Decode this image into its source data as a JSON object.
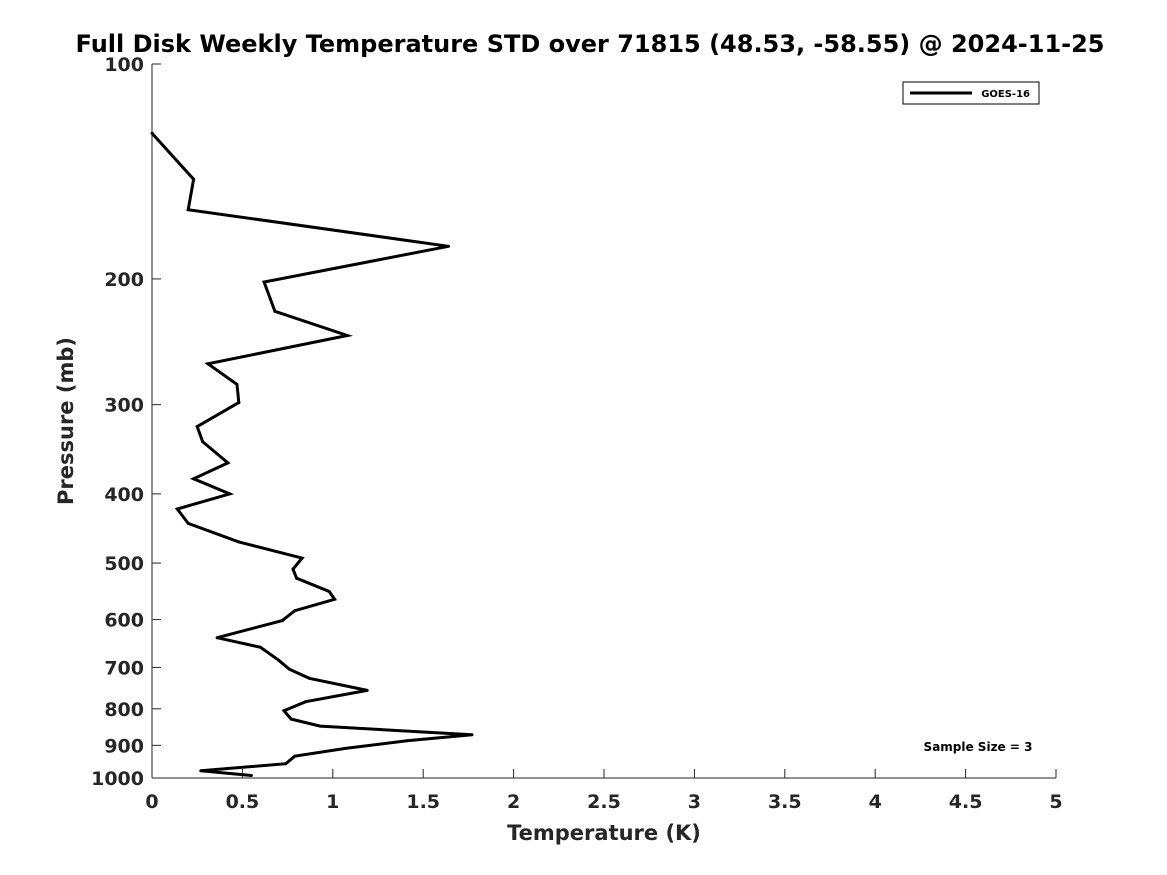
{
  "chart_data": {
    "type": "line",
    "title": "Full Disk Weekly Temperature STD over 71815 (48.53, -58.55) @ 2024-11-25",
    "xlabel": "Temperature (K)",
    "ylabel": "Pressure (mb)",
    "xlim": [
      0,
      5
    ],
    "ylim": [
      100,
      1000
    ],
    "y_scale": "log",
    "y_reversed": true,
    "x_ticks": [
      "0",
      "0.5",
      "1",
      "1.5",
      "2",
      "2.5",
      "3",
      "3.5",
      "4",
      "4.5",
      "5"
    ],
    "y_ticks": [
      "100",
      "200",
      "300",
      "400",
      "500",
      "600",
      "700",
      "800",
      "900",
      "1000"
    ],
    "grid": false,
    "legend_position": "top-right",
    "annotation": "Sample Size = 3",
    "series": [
      {
        "name": "GOES-16",
        "color": "#000000",
        "points": [
          [
            0.0,
            125
          ],
          [
            0.23,
            145
          ],
          [
            0.2,
            160
          ],
          [
            1.64,
            180
          ],
          [
            0.62,
            202
          ],
          [
            0.68,
            222
          ],
          [
            1.08,
            240
          ],
          [
            0.31,
            263
          ],
          [
            0.47,
            281
          ],
          [
            0.48,
            298
          ],
          [
            0.25,
            322
          ],
          [
            0.28,
            338
          ],
          [
            0.42,
            362
          ],
          [
            0.23,
            381
          ],
          [
            0.43,
            400
          ],
          [
            0.14,
            420
          ],
          [
            0.2,
            440
          ],
          [
            0.48,
            467
          ],
          [
            0.83,
            492
          ],
          [
            0.78,
            510
          ],
          [
            0.8,
            525
          ],
          [
            0.98,
            548
          ],
          [
            1.01,
            562
          ],
          [
            0.79,
            583
          ],
          [
            0.72,
            602
          ],
          [
            0.36,
            636
          ],
          [
            0.6,
            656
          ],
          [
            0.7,
            684
          ],
          [
            0.76,
            704
          ],
          [
            0.87,
            725
          ],
          [
            1.19,
            754
          ],
          [
            0.85,
            782
          ],
          [
            0.73,
            805
          ],
          [
            0.77,
            827
          ],
          [
            0.93,
            846
          ],
          [
            1.77,
            870
          ],
          [
            1.41,
            887
          ],
          [
            1.07,
            909
          ],
          [
            0.79,
            932
          ],
          [
            0.74,
            955
          ],
          [
            0.27,
            977
          ],
          [
            0.55,
            992
          ]
        ]
      }
    ]
  }
}
